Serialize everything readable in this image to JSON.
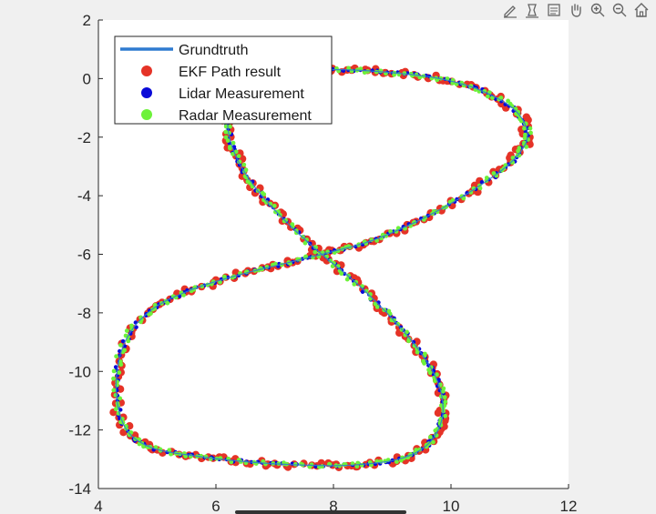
{
  "toolbar": {
    "tools": [
      {
        "name": "edit-plot-icon"
      },
      {
        "name": "insert-legend-icon"
      },
      {
        "name": "data-cursor-icon"
      },
      {
        "name": "pan-icon"
      },
      {
        "name": "zoom-in-icon"
      },
      {
        "name": "zoom-out-icon"
      },
      {
        "name": "home-icon"
      }
    ]
  },
  "colors": {
    "background": "#f0f0f0",
    "axes_bg": "#ffffff",
    "groundtruth": "#2f7bd0",
    "ekf": "#e53327",
    "lidar": "#0a0ad8",
    "radar": "#6df23a"
  },
  "chart_data": {
    "type": "scatter",
    "title": "",
    "xlabel": "",
    "ylabel": "",
    "xlim": [
      4,
      12
    ],
    "ylim": [
      -14,
      2
    ],
    "xticks": [
      "4",
      "6",
      "8",
      "10",
      "12"
    ],
    "yticks": [
      "2",
      "0",
      "-2",
      "-4",
      "-6",
      "-8",
      "-10",
      "-12",
      "-14"
    ],
    "grid": false,
    "legend_position": "top-left",
    "legend": [
      {
        "label": "Grundtruth",
        "style": "line"
      },
      {
        "label": "EKF Path result",
        "style": "marker"
      },
      {
        "label": "Lidar Measurement",
        "style": "marker"
      },
      {
        "label": "Radar Measurement",
        "style": "marker"
      }
    ],
    "series": [
      {
        "name": "Grundtruth",
        "kind": "line",
        "x": [
          7.4,
          8.2,
          9.0,
          9.8,
          10.5,
          11.1,
          11.3,
          11.0,
          10.3,
          9.5,
          8.7,
          8.0,
          7.2,
          6.4,
          5.6,
          4.9,
          4.45,
          4.3,
          4.45,
          4.9,
          5.7,
          6.6,
          7.5,
          8.3,
          9.1,
          9.6,
          9.85,
          9.8,
          9.5,
          9.0,
          8.4,
          7.8,
          7.2,
          6.7,
          6.35,
          6.2,
          6.3,
          6.7,
          7.4
        ],
        "y": [
          0.3,
          0.3,
          0.2,
          0.0,
          -0.4,
          -1.1,
          -2.0,
          -2.9,
          -3.9,
          -4.8,
          -5.5,
          -5.9,
          -6.3,
          -6.7,
          -7.2,
          -7.9,
          -9.0,
          -10.5,
          -11.9,
          -12.6,
          -12.9,
          -13.1,
          -13.2,
          -13.2,
          -13.0,
          -12.5,
          -11.6,
          -10.5,
          -9.4,
          -8.2,
          -7.0,
          -6.0,
          -4.9,
          -3.8,
          -2.7,
          -1.6,
          -0.8,
          -0.1,
          0.3
        ]
      },
      {
        "name": "EKF Path result",
        "kind": "markers",
        "x": [
          7.4,
          8.2,
          9.0,
          9.8,
          10.5,
          11.1,
          11.3,
          11.0,
          10.3,
          9.5,
          8.7,
          8.0,
          7.2,
          6.4,
          5.6,
          4.9,
          4.45,
          4.3,
          4.45,
          4.9,
          5.7,
          6.6,
          7.5,
          8.3,
          9.1,
          9.6,
          9.85,
          9.8,
          9.5,
          9.0,
          8.4,
          7.8,
          7.2,
          6.7,
          6.35,
          6.2,
          6.3,
          6.7,
          7.4
        ],
        "y": [
          0.3,
          0.3,
          0.2,
          0.0,
          -0.4,
          -1.1,
          -2.0,
          -2.9,
          -3.9,
          -4.8,
          -5.5,
          -5.9,
          -6.3,
          -6.7,
          -7.2,
          -7.9,
          -9.0,
          -10.5,
          -11.9,
          -12.6,
          -12.9,
          -13.1,
          -13.2,
          -13.2,
          -13.0,
          -12.5,
          -11.6,
          -10.5,
          -9.4,
          -8.2,
          -7.0,
          -6.0,
          -4.9,
          -3.8,
          -2.7,
          -1.6,
          -0.8,
          -0.1,
          0.3
        ]
      },
      {
        "name": "Lidar Measurement",
        "kind": "markers",
        "x": [
          7.4,
          8.2,
          9.0,
          9.8,
          10.5,
          11.1,
          11.3,
          11.0,
          10.3,
          9.5,
          8.7,
          8.0,
          7.2,
          6.4,
          5.6,
          4.9,
          4.45,
          4.3,
          4.45,
          4.9,
          5.7,
          6.6,
          7.5,
          8.3,
          9.1,
          9.6,
          9.85,
          9.8,
          9.5,
          9.0,
          8.4,
          7.8,
          7.2,
          6.7,
          6.35,
          6.2,
          6.3,
          6.7,
          7.4
        ],
        "y": [
          0.3,
          0.3,
          0.2,
          0.0,
          -0.4,
          -1.1,
          -2.0,
          -2.9,
          -3.9,
          -4.8,
          -5.5,
          -5.9,
          -6.3,
          -6.7,
          -7.2,
          -7.9,
          -9.0,
          -10.5,
          -11.9,
          -12.6,
          -12.9,
          -13.1,
          -13.2,
          -13.2,
          -13.0,
          -12.5,
          -11.6,
          -10.5,
          -9.4,
          -8.2,
          -7.0,
          -6.0,
          -4.9,
          -3.8,
          -2.7,
          -1.6,
          -0.8,
          -0.1,
          0.3
        ]
      },
      {
        "name": "Radar Measurement",
        "kind": "markers",
        "x": [
          7.4,
          8.2,
          9.0,
          9.8,
          10.5,
          11.1,
          11.3,
          11.0,
          10.3,
          9.5,
          8.7,
          8.0,
          7.2,
          6.4,
          5.6,
          4.9,
          4.45,
          4.3,
          4.45,
          4.9,
          5.7,
          6.6,
          7.5,
          8.3,
          9.1,
          9.6,
          9.85,
          9.8,
          9.5,
          9.0,
          8.4,
          7.8,
          7.2,
          6.7,
          6.35,
          6.2,
          6.3,
          6.7,
          7.4
        ],
        "y": [
          0.3,
          0.3,
          0.2,
          0.0,
          -0.4,
          -1.1,
          -2.0,
          -2.9,
          -3.9,
          -4.8,
          -5.5,
          -5.9,
          -6.3,
          -6.7,
          -7.2,
          -7.9,
          -9.0,
          -10.5,
          -11.9,
          -12.6,
          -12.9,
          -13.1,
          -13.2,
          -13.2,
          -13.0,
          -12.5,
          -11.6,
          -10.5,
          -9.4,
          -8.2,
          -7.0,
          -6.0,
          -4.9,
          -3.8,
          -2.7,
          -1.6,
          -0.8,
          -0.1,
          0.3
        ]
      }
    ]
  }
}
